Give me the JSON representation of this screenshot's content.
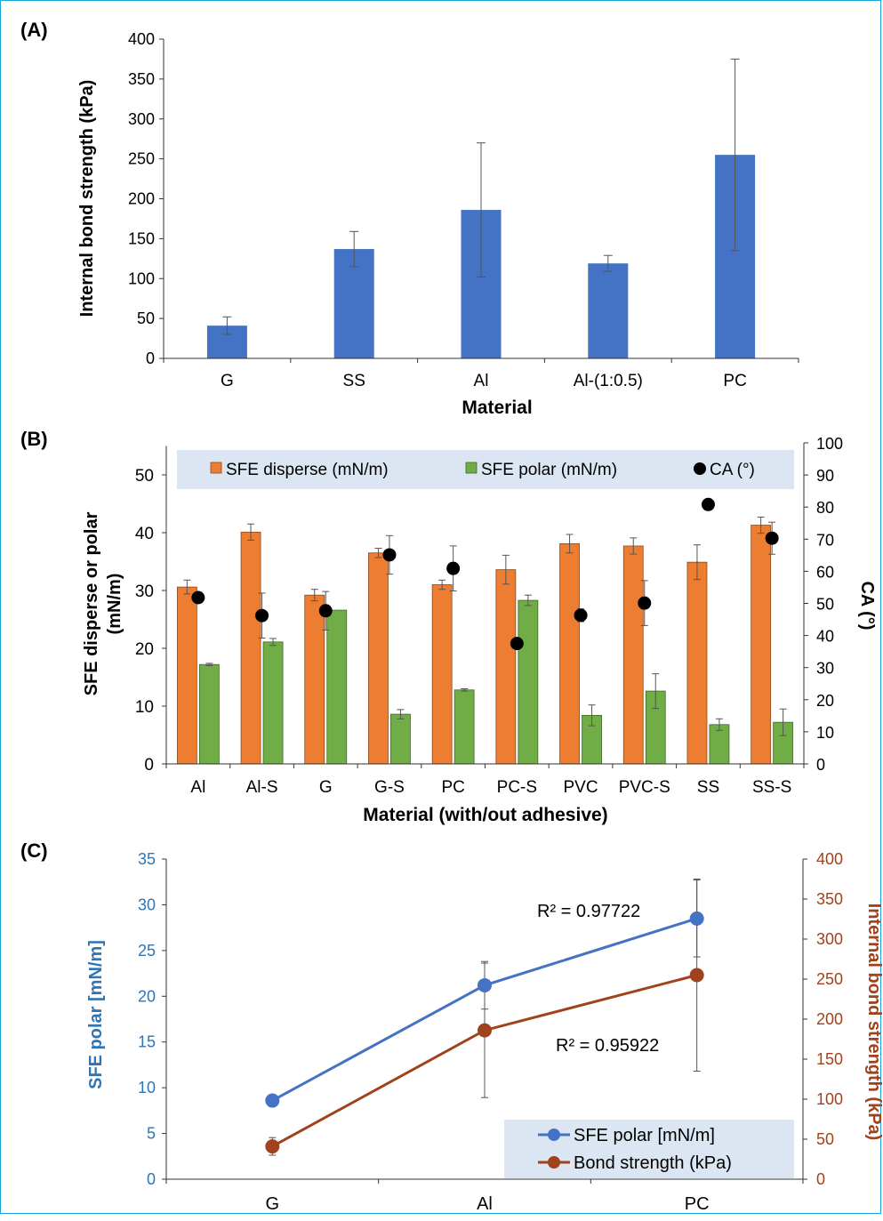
{
  "colors": {
    "bar_blue": "#4472C4",
    "bar_orange": "#ED7D31",
    "bar_green": "#70AD47",
    "ca_black": "#000000",
    "line_blue": "#4472C4",
    "line_brown": "#A0421B",
    "legend_bg": "#DCE6F2",
    "axis_blue_text": "#2E75B6",
    "axis_brown_text": "#A0421B"
  },
  "chart_data": [
    {
      "panel_label": "(A)",
      "type": "bar",
      "categories": [
        "G",
        "SS",
        "Al",
        "Al-(1:0.5)",
        "PC"
      ],
      "values": [
        41,
        137,
        186,
        119,
        255
      ],
      "errors": [
        11,
        22,
        84,
        10,
        120
      ],
      "xlabel": "Material",
      "ylabel": "Internal bond strength (kPa)",
      "ylim": [
        0,
        400
      ],
      "yticks": [
        "0",
        "50",
        "100",
        "150",
        "200",
        "250",
        "300",
        "350",
        "400"
      ],
      "grid": false
    },
    {
      "panel_label": "(B)",
      "type": "bar",
      "categories": [
        "Al",
        "Al-S",
        "G",
        "G-S",
        "PC",
        "PC-S",
        "PVC",
        "PVC-S",
        "SS",
        "SS-S"
      ],
      "series": [
        {
          "name": "SFE disperse (mN/m)",
          "axis": "left",
          "values": [
            30.6,
            40.1,
            29.2,
            36.5,
            31.0,
            33.6,
            38.1,
            37.7,
            34.9,
            41.3
          ],
          "errors": [
            1.2,
            1.4,
            1.0,
            0.8,
            0.8,
            2.5,
            1.6,
            1.4,
            3.0,
            1.4
          ]
        },
        {
          "name": "SFE polar  (mN/m)",
          "axis": "left",
          "values": [
            17.2,
            21.1,
            26.6,
            8.6,
            12.8,
            28.3,
            8.4,
            12.6,
            6.8,
            7.2
          ],
          "errors": [
            0.2,
            0.6,
            0.0,
            0.8,
            0.2,
            0.9,
            1.8,
            3.0,
            1.0,
            2.3
          ]
        },
        {
          "name": "CA (°)",
          "axis": "right",
          "type": "scatter",
          "values": [
            51.8,
            46.2,
            47.7,
            65.1,
            60.9,
            37.5,
            46.3,
            50.1,
            80.8,
            70.3
          ],
          "errors": [
            0,
            7,
            6,
            6,
            7,
            0,
            2,
            7,
            1.5,
            5
          ]
        }
      ],
      "xlabel": "Material (with/out adhesive)",
      "ylabel": "SFE disperse or polar (mN/m)",
      "ylabel_line1": "SFE disperse or polar",
      "ylabel_line2": "(mN/m)",
      "y2label": "CA (°)",
      "ylim": [
        0,
        55
      ],
      "yticks": [
        "0",
        "10",
        "20",
        "30",
        "40",
        "50"
      ],
      "y2lim": [
        0,
        100
      ],
      "y2ticks": [
        "0",
        "10",
        "20",
        "30",
        "40",
        "50",
        "60",
        "70",
        "80",
        "90",
        "100"
      ],
      "legend": "top",
      "grid": false
    },
    {
      "panel_label": "(C)",
      "type": "line",
      "categories": [
        "G",
        "Al",
        "PC"
      ],
      "series": [
        {
          "name": "SFE polar  [mN/m]",
          "axis": "left",
          "values": [
            8.6,
            21.2,
            28.5
          ],
          "errors": [
            0.6,
            2.6,
            4.2
          ],
          "r2_label": "R² = 0.97722"
        },
        {
          "name": "Bond strength (kPa)",
          "axis": "right",
          "values": [
            41,
            186,
            255
          ],
          "errors": [
            11,
            84,
            120
          ],
          "r2_label": "R² = 0.95922"
        }
      ],
      "ylabel": "SFE polar  [mN/m]",
      "y2label": "Internal bond strength (kPa)",
      "ylim": [
        0,
        35
      ],
      "yticks": [
        "0",
        "5",
        "10",
        "15",
        "20",
        "25",
        "30",
        "35"
      ],
      "y2lim": [
        0,
        400
      ],
      "y2ticks": [
        "0",
        "50",
        "100",
        "150",
        "200",
        "250",
        "300",
        "350",
        "400"
      ],
      "legend": "bottom-right",
      "grid": false
    }
  ]
}
